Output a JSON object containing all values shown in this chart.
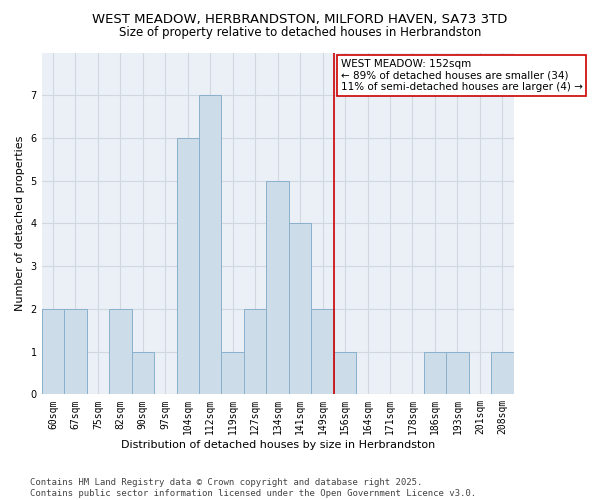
{
  "title": "WEST MEADOW, HERBRANDSTON, MILFORD HAVEN, SA73 3TD",
  "subtitle": "Size of property relative to detached houses in Herbrandston",
  "xlabel": "Distribution of detached houses by size in Herbrandston",
  "ylabel": "Number of detached properties",
  "categories": [
    "60sqm",
    "67sqm",
    "75sqm",
    "82sqm",
    "90sqm",
    "97sqm",
    "104sqm",
    "112sqm",
    "119sqm",
    "127sqm",
    "134sqm",
    "141sqm",
    "149sqm",
    "156sqm",
    "164sqm",
    "171sqm",
    "178sqm",
    "186sqm",
    "193sqm",
    "201sqm",
    "208sqm"
  ],
  "values": [
    2,
    2,
    0,
    2,
    1,
    0,
    6,
    7,
    1,
    2,
    5,
    4,
    2,
    1,
    0,
    0,
    0,
    1,
    1,
    0,
    1
  ],
  "bar_color": "#ccdce8",
  "bar_edge_color": "#8ab0cc",
  "grid_color": "#d0d8e0",
  "bg_color": "#eaf0f6",
  "vline_color": "#cc0000",
  "annotation_text": "WEST MEADOW: 152sqm\n← 89% of detached houses are smaller (34)\n11% of semi-detached houses are larger (4) →",
  "annotation_box_color": "#cc0000",
  "ylim": [
    0,
    8
  ],
  "yticks": [
    0,
    1,
    2,
    3,
    4,
    5,
    6,
    7
  ],
  "footnote": "Contains HM Land Registry data © Crown copyright and database right 2025.\nContains public sector information licensed under the Open Government Licence v3.0.",
  "title_fontsize": 9.5,
  "subtitle_fontsize": 8.5,
  "xlabel_fontsize": 8,
  "ylabel_fontsize": 8,
  "tick_fontsize": 7,
  "annotation_fontsize": 7.5,
  "footnote_fontsize": 6.5,
  "vline_index": 12.5
}
